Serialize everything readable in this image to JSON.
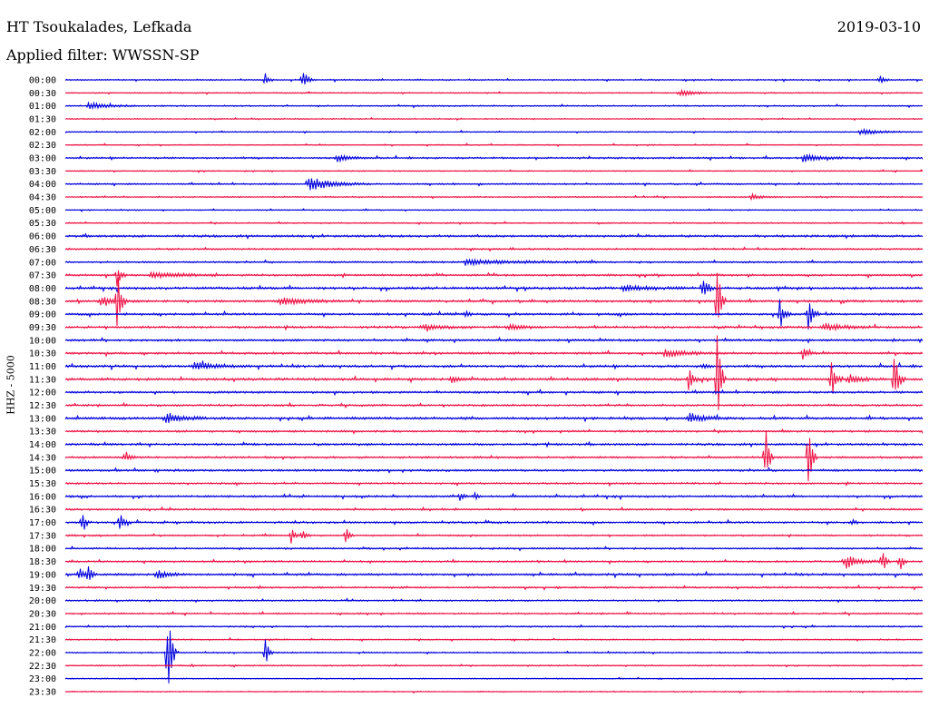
{
  "header": {
    "station": "HT Tsoukalades, Lefkada",
    "date": "2019-03-10",
    "filter": "Applied filter: WWSSN-SP"
  },
  "channel_label": "HHZ - 5000",
  "colors": {
    "even": "#0000dd",
    "odd": "#ee1144"
  },
  "chart_data": {
    "type": "line",
    "subtype": "helicorder",
    "title": "HT Tsoukalades, Lefkada",
    "date": "2019-03-10",
    "filter": "WWSSN-SP",
    "ylabel": "HHZ - 5000",
    "row_labels": [
      "00:00",
      "00:30",
      "01:00",
      "01:30",
      "02:00",
      "02:30",
      "03:00",
      "03:30",
      "04:00",
      "04:30",
      "05:00",
      "05:30",
      "06:00",
      "06:30",
      "07:00",
      "07:30",
      "08:00",
      "08:30",
      "09:00",
      "09:30",
      "10:00",
      "10:30",
      "11:00",
      "11:30",
      "12:00",
      "12:30",
      "13:00",
      "13:30",
      "14:00",
      "14:30",
      "15:00",
      "15:30",
      "16:00",
      "16:30",
      "17:00",
      "17:30",
      "18:00",
      "18:30",
      "19:00",
      "19:30",
      "20:00",
      "20:30",
      "21:00",
      "21:30",
      "22:00",
      "22:30",
      "23:00",
      "23:30"
    ],
    "minutes_per_row": 30,
    "noise": [
      0.6,
      0.5,
      0.6,
      0.5,
      0.5,
      0.5,
      0.8,
      0.5,
      0.7,
      0.6,
      0.5,
      0.6,
      1,
      0.8,
      0.8,
      0.9,
      1.1,
      1,
      1,
      1,
      1,
      1,
      1.1,
      1.1,
      1,
      0.9,
      1.1,
      0.9,
      1,
      0.9,
      1,
      0.8,
      0.9,
      0.8,
      0.9,
      0.7,
      0.8,
      0.8,
      1,
      0.8,
      0.7,
      0.7,
      0.7,
      0.6,
      0.6,
      0.6,
      0.5,
      0.5
    ],
    "events": [
      {
        "row": 0,
        "minute": 7.0,
        "amp": 8,
        "dur": 0.3
      },
      {
        "row": 0,
        "minute": 8.3,
        "amp": 14,
        "dur": 0.4
      },
      {
        "row": 0,
        "minute": 28.5,
        "amp": 5,
        "dur": 0.4
      },
      {
        "row": 1,
        "minute": 21.5,
        "amp": 4,
        "dur": 1.2
      },
      {
        "row": 2,
        "minute": 0.8,
        "amp": 4,
        "dur": 1.8
      },
      {
        "row": 4,
        "minute": 27.8,
        "amp": 3,
        "dur": 2.0
      },
      {
        "row": 6,
        "minute": 9.5,
        "amp": 4,
        "dur": 1.2
      },
      {
        "row": 6,
        "minute": 25.8,
        "amp": 4,
        "dur": 1.8
      },
      {
        "row": 8,
        "minute": 8.5,
        "amp": 8,
        "dur": 2.2
      },
      {
        "row": 9,
        "minute": 24.0,
        "amp": 3,
        "dur": 1.0
      },
      {
        "row": 14,
        "minute": 14.0,
        "amp": 3,
        "dur": 5.0
      },
      {
        "row": 15,
        "minute": 1.8,
        "amp": 14,
        "dur": 0.3
      },
      {
        "row": 15,
        "minute": 3.0,
        "amp": 3,
        "dur": 2.8
      },
      {
        "row": 16,
        "minute": 19.5,
        "amp": 3,
        "dur": 2.5
      },
      {
        "row": 16,
        "minute": 22.3,
        "amp": 16,
        "dur": 0.4
      },
      {
        "row": 17,
        "minute": 1.2,
        "amp": 6,
        "dur": 1.5
      },
      {
        "row": 17,
        "minute": 1.8,
        "amp": 40,
        "dur": 0.3
      },
      {
        "row": 17,
        "minute": 7.5,
        "amp": 4,
        "dur": 2.5
      },
      {
        "row": 17,
        "minute": 22.8,
        "amp": 60,
        "dur": 0.3
      },
      {
        "row": 18,
        "minute": 14.0,
        "amp": 4,
        "dur": 0.3
      },
      {
        "row": 18,
        "minute": 25.0,
        "amp": 18,
        "dur": 0.4
      },
      {
        "row": 18,
        "minute": 26.0,
        "amp": 18,
        "dur": 0.4
      },
      {
        "row": 19,
        "minute": 12.5,
        "amp": 3,
        "dur": 2.0
      },
      {
        "row": 19,
        "minute": 15.5,
        "amp": 3,
        "dur": 1.5
      },
      {
        "row": 19,
        "minute": 26.5,
        "amp": 4,
        "dur": 2.0
      },
      {
        "row": 21,
        "minute": 21.0,
        "amp": 4,
        "dur": 2.0
      },
      {
        "row": 21,
        "minute": 25.8,
        "amp": 8,
        "dur": 0.5
      },
      {
        "row": 22,
        "minute": 4.5,
        "amp": 4,
        "dur": 2.5
      },
      {
        "row": 22,
        "minute": 22.3,
        "amp": 4,
        "dur": 0.4
      },
      {
        "row": 23,
        "minute": 13.5,
        "amp": 3,
        "dur": 0.8
      },
      {
        "row": 23,
        "minute": 21.8,
        "amp": 14,
        "dur": 0.4
      },
      {
        "row": 23,
        "minute": 22.8,
        "amp": 70,
        "dur": 0.3
      },
      {
        "row": 23,
        "minute": 26.8,
        "amp": 24,
        "dur": 0.4
      },
      {
        "row": 23,
        "minute": 27.4,
        "amp": 6,
        "dur": 1.0
      },
      {
        "row": 23,
        "minute": 29.0,
        "amp": 30,
        "dur": 0.4
      },
      {
        "row": 26,
        "minute": 3.5,
        "amp": 6,
        "dur": 1.5
      },
      {
        "row": 26,
        "minute": 21.8,
        "amp": 6,
        "dur": 1.5
      },
      {
        "row": 29,
        "minute": 2.1,
        "amp": 8,
        "dur": 0.4
      },
      {
        "row": 29,
        "minute": 24.5,
        "amp": 40,
        "dur": 0.3
      },
      {
        "row": 29,
        "minute": 26.0,
        "amp": 50,
        "dur": 0.3
      },
      {
        "row": 32,
        "minute": 13.8,
        "amp": 6,
        "dur": 0.3
      },
      {
        "row": 32,
        "minute": 14.3,
        "amp": 5,
        "dur": 0.3
      },
      {
        "row": 34,
        "minute": 0.6,
        "amp": 14,
        "dur": 0.3
      },
      {
        "row": 34,
        "minute": 1.9,
        "amp": 12,
        "dur": 0.4
      },
      {
        "row": 34,
        "minute": 27.5,
        "amp": 3,
        "dur": 0.5
      },
      {
        "row": 35,
        "minute": 7.9,
        "amp": 10,
        "dur": 0.3
      },
      {
        "row": 35,
        "minute": 8.3,
        "amp": 8,
        "dur": 0.3
      },
      {
        "row": 35,
        "minute": 9.8,
        "amp": 12,
        "dur": 0.3
      },
      {
        "row": 37,
        "minute": 27.3,
        "amp": 8,
        "dur": 1.2
      },
      {
        "row": 37,
        "minute": 28.6,
        "amp": 14,
        "dur": 0.3
      },
      {
        "row": 37,
        "minute": 29.2,
        "amp": 12,
        "dur": 0.3
      },
      {
        "row": 38,
        "minute": 0.5,
        "amp": 10,
        "dur": 0.3
      },
      {
        "row": 38,
        "minute": 0.8,
        "amp": 16,
        "dur": 0.3
      },
      {
        "row": 38,
        "minute": 3.2,
        "amp": 5,
        "dur": 1.0
      },
      {
        "row": 44,
        "minute": 3.6,
        "amp": 66,
        "dur": 0.3
      },
      {
        "row": 44,
        "minute": 7.0,
        "amp": 16,
        "dur": 0.3
      }
    ]
  }
}
